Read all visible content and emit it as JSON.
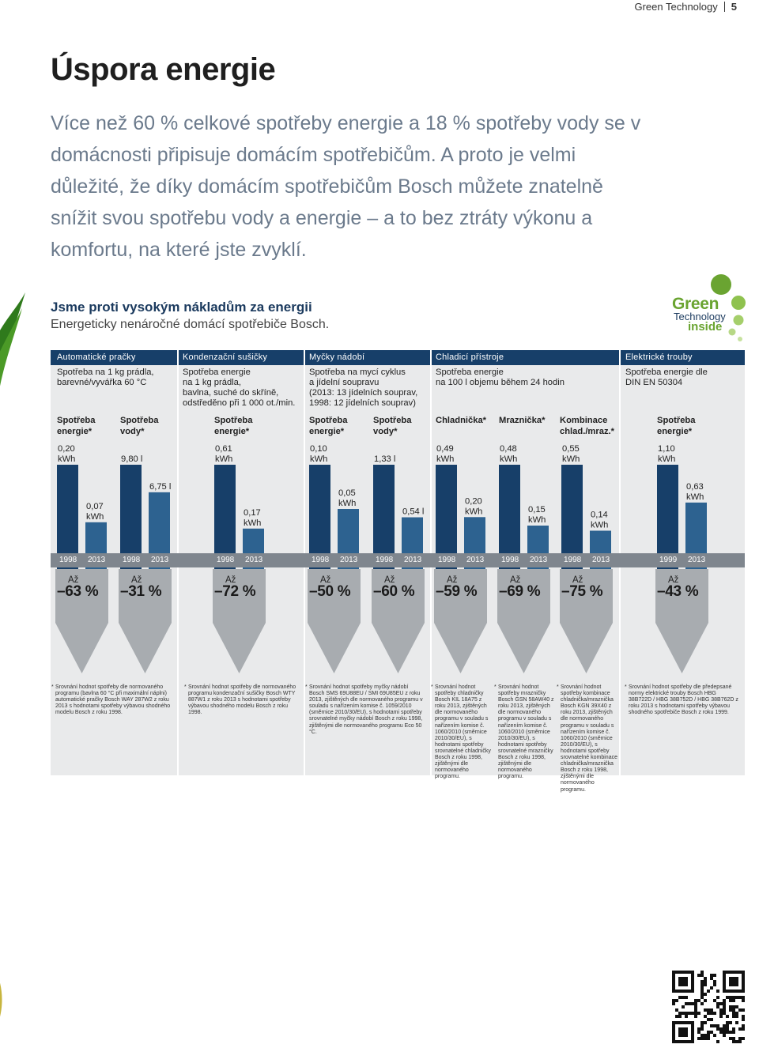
{
  "header": {
    "title": "Green Technology",
    "page": "5"
  },
  "main_title": "Úspora energie",
  "intro": "Více než 60 % celkové spotřeby energie a 18 % spotřeby vody se v domácnosti připisuje domácím spotřebičům. A proto je velmi důležité, že díky domácím spotřebičům Bosch můžete znatelně snížit svou spotřebu vody a energie – a to bez ztráty výkonu a komfortu, na které jste zvyklí.",
  "section": {
    "title": "Jsme proti vysokým nákladům za energii",
    "subtitle": "Energeticky nenáročné domácí spotřebiče Bosch."
  },
  "logo": {
    "line1": "Green",
    "line2": "Technology",
    "line3": "inside"
  },
  "categories": [
    {
      "label": "Automatické pračky",
      "desc": "Spotřeba na 1 kg prádla,\nbarevné/vyvářka 60 °C"
    },
    {
      "label": "Kondenzační sušičky",
      "desc": "Spotřeba energie\nna 1 kg prádla,\nbavlna, suché do skříně,\nodstředěno při 1 000 ot./min."
    },
    {
      "label": "Myčky nádobí",
      "desc": "Spotřeba na mycí cyklus\na jídelní soupravu\n(2013: 13 jídelních souprav,\n1998: 12 jídelních souprav)"
    },
    {
      "label": "Chladicí přístroje",
      "desc": "Spotřeba energie\nna 100 l objemu během 24 hodin"
    },
    {
      "label": "Elektrické trouby",
      "desc": "Spotřeba energie dle\nDIN EN 50304"
    }
  ],
  "chart_data": {
    "type": "bar",
    "title": "",
    "groups": [
      {
        "label": "Spotřeba\nenergie*",
        "years": [
          "1998",
          "2013"
        ],
        "values": [
          0.2,
          0.07
        ],
        "labels": [
          "0,20\nkWh",
          "0,07\nkWh"
        ],
        "saving_prefix": "Až",
        "saving": "–63 %"
      },
      {
        "label": "Spotřeba\nvody*",
        "years": [
          "1998",
          "2013"
        ],
        "values": [
          9.8,
          6.75
        ],
        "labels": [
          "9,80 l",
          "6,75 l"
        ],
        "saving_prefix": "Až",
        "saving": "–31 %"
      },
      {
        "label": "Spotřeba\nenergie*",
        "years": [
          "1998",
          "2013"
        ],
        "values": [
          0.61,
          0.17
        ],
        "labels": [
          "0,61\nkWh",
          "0,17\nkWh"
        ],
        "saving_prefix": "Až",
        "saving": "–72 %"
      },
      {
        "label": "Spotřeba\nenergie*",
        "years": [
          "1998",
          "2013"
        ],
        "values": [
          0.1,
          0.05
        ],
        "labels": [
          "0,10\nkWh",
          "0,05\nkWh"
        ],
        "saving_prefix": "Až",
        "saving": "–50 %"
      },
      {
        "label": "Spotřeba\nvody*",
        "years": [
          "1998",
          "2013"
        ],
        "values": [
          1.33,
          0.54
        ],
        "labels": [
          "1,33 l",
          "0,54 l"
        ],
        "saving_prefix": "Až",
        "saving": "–60 %"
      },
      {
        "label": "Chladnička*",
        "years": [
          "1998",
          "2013"
        ],
        "values": [
          0.49,
          0.2
        ],
        "labels": [
          "0,49\nkWh",
          "0,20\nkWh"
        ],
        "saving_prefix": "Až",
        "saving": "–59 %"
      },
      {
        "label": "Mraznička*",
        "years": [
          "1998",
          "2013"
        ],
        "values": [
          0.48,
          0.15
        ],
        "labels": [
          "0,48\nkWh",
          "0,15\nkWh"
        ],
        "saving_prefix": "Až",
        "saving": "–69 %"
      },
      {
        "label": "Kombinace\nchlad./mraz.*",
        "years": [
          "1998",
          "2013"
        ],
        "values": [
          0.55,
          0.14
        ],
        "labels": [
          "0,55\nkWh",
          "0,14\nkWh"
        ],
        "saving_prefix": "Až",
        "saving": "–75 %"
      },
      {
        "label": "Spotřeba\nenergie*",
        "years": [
          "1999",
          "2013"
        ],
        "values": [
          1.1,
          0.63
        ],
        "labels": [
          "1,10\nkWh",
          "0,63\nkWh"
        ],
        "saving_prefix": "Až",
        "saving": "–43 %"
      }
    ],
    "colors": {
      "old": "#173f69",
      "new": "#2d6290",
      "header": "#173f69",
      "years": "#7f868e",
      "arrow": "#a8acb0",
      "panel": "#e9eaeb"
    }
  },
  "footnotes": [
    "Srovnání hodnot spotřeby dle normovaného programu (bavlna 60 °C při maximální náplni) automatické pračky Bosch WAY 287W2 z roku 2013 s hodnotami spotřeby výbavou shodného modelu Bosch z roku 1998.",
    "Srovnání hodnot spotřeby dle normovaného programu kondenzační sušičky Bosch WTY 887W1 z roku 2013 s hodnotami spotřeby výbavou shodného modelu Bosch z roku 1998.",
    "Srovnání hodnot spotřeby myčky nádobí Bosch SMS 69U88EU / SMI 69U85EU z roku 2013, zjištěných dle normovaného programu v souladu s nařízením komise č. 1059/2010 (směrnice 2010/30/EU), s hodnotami spotřeby srovnatelné myčky nádobí Bosch z roku 1998, zjištěnými dle normovaného programu Eco 50 °C.",
    "Srovnání hodnot spotřeby chladničky Bosch KIL 18A75 z roku 2013, zjištěných dle normovaného programu v souladu s nařízením komise č. 1060/2010 (směrnice 2010/30/EU), s hodnotami spotřeby srovnatelné chladničky Bosch z roku 1998, zjištěnými dle normovaného programu.",
    "Srovnání hodnot spotřeby mrazničky Bosch GSN 58AW40 z roku 2013, zjištěných dle normovaného programu v souladu s nařízením komise č. 1060/2010 (směrnice 2010/30/EU), s hodnotami spotřeby srovnatelné mrazničky Bosch z roku 1998, zjištěnými dle normovaného programu.",
    "Srovnání hodnot spotřeby kombinace chladnička/mraznička Bosch KGN 39X40 z roku 2013, zjištěných dle normovaného programu v souladu s nařízením komise č. 1060/2010 (směrnice 2010/30/EU), s hodnotami spotřeby srovnatelné kombinace chladnička/mraznička Bosch z roku 1998, zjištěnými dle normovaného programu.",
    "Srovnání hodnot spotřeby dle předepsané normy elektrické trouby Bosch HBG 38B722D / HBG 38B752D / HBG 38B762D z roku 2013 s hodnotami spotřeby výbavou shodného spotřebiče Bosch z roku 1999."
  ]
}
